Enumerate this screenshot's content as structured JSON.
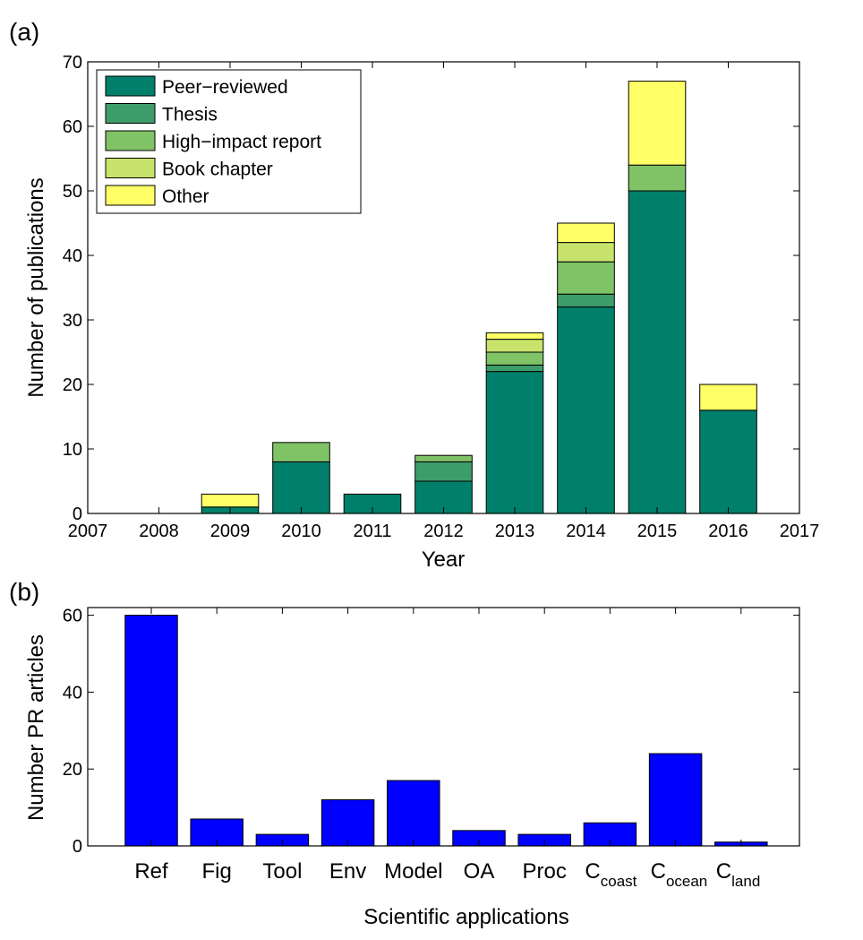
{
  "panels": {
    "a_label": "(a)",
    "b_label": "(b)"
  },
  "chart_data": [
    {
      "type": "bar",
      "stacked": true,
      "panel": "(a)",
      "title": "",
      "xlabel": "Year",
      "ylabel": "Number of publications",
      "xlim": [
        2007,
        2017
      ],
      "xticks": [
        "2007",
        "2008",
        "2009",
        "2010",
        "2011",
        "2012",
        "2013",
        "2014",
        "2015",
        "2016",
        "2017"
      ],
      "ylim": [
        0,
        70
      ],
      "yticks": [
        "0",
        "10",
        "20",
        "30",
        "40",
        "50",
        "60",
        "70"
      ],
      "grid": false,
      "legend_position": "top-left",
      "categories": [
        2009,
        2010,
        2011,
        2012,
        2013,
        2014,
        2015,
        2016
      ],
      "series": [
        {
          "name": "Peer−reviewed",
          "color": "#00806a",
          "values": [
            1,
            8,
            3,
            5,
            22,
            32,
            50,
            16
          ]
        },
        {
          "name": "Thesis",
          "color": "#3d9d6a",
          "values": [
            0,
            0,
            0,
            3,
            1,
            2,
            0,
            0
          ]
        },
        {
          "name": "High−impact report",
          "color": "#80c266",
          "values": [
            0,
            3,
            0,
            1,
            2,
            5,
            4,
            0
          ]
        },
        {
          "name": "Book chapter",
          "color": "#c7e36b",
          "values": [
            0,
            0,
            0,
            0,
            2,
            3,
            0,
            0
          ]
        },
        {
          "name": "Other",
          "color": "#ffff66",
          "values": [
            2,
            0,
            0,
            0,
            1,
            3,
            13,
            4
          ]
        }
      ]
    },
    {
      "type": "bar",
      "panel": "(b)",
      "title": "",
      "xlabel": "Scientific applications",
      "ylabel": "Number PR articles",
      "ylim": [
        0,
        62
      ],
      "yticks": [
        "0",
        "20",
        "40",
        "60"
      ],
      "grid": false,
      "color": "#0000ff",
      "categories": [
        {
          "main": "Ref",
          "sub": ""
        },
        {
          "main": "Fig",
          "sub": ""
        },
        {
          "main": "Tool",
          "sub": ""
        },
        {
          "main": "Env",
          "sub": ""
        },
        {
          "main": "Model",
          "sub": ""
        },
        {
          "main": "OA",
          "sub": ""
        },
        {
          "main": "Proc",
          "sub": ""
        },
        {
          "main": "C",
          "sub": "coast"
        },
        {
          "main": "C",
          "sub": "ocean"
        },
        {
          "main": "C",
          "sub": "land"
        }
      ],
      "values": [
        60,
        7,
        3,
        12,
        17,
        4,
        3,
        6,
        24,
        1
      ]
    }
  ]
}
